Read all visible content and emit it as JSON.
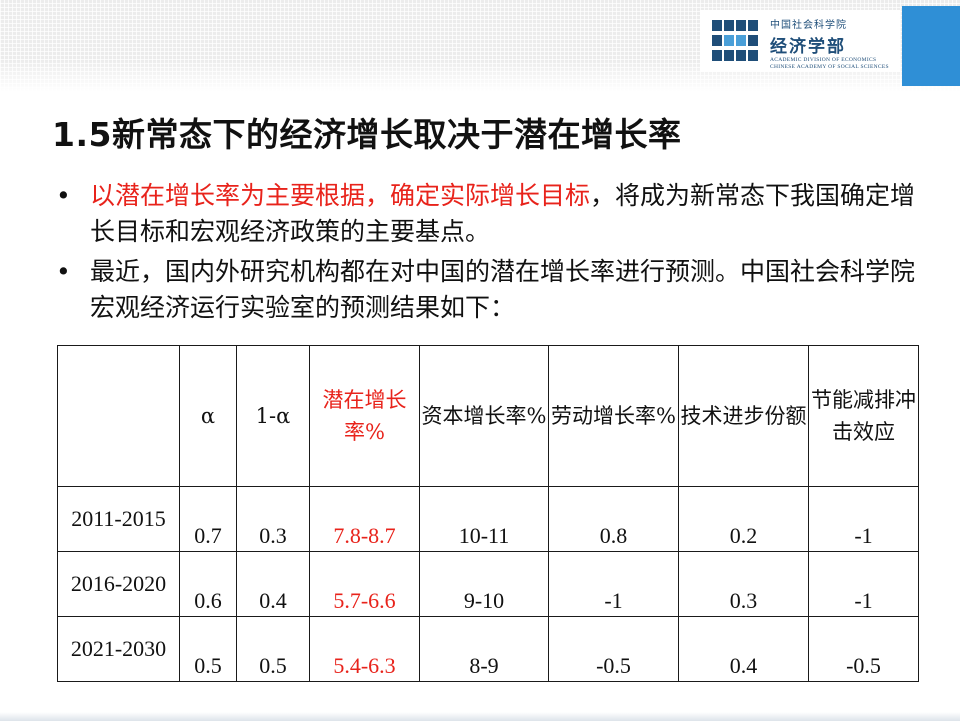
{
  "header": {
    "logo": {
      "cn_line1": "中国社会科学院",
      "cn_line2": "经济学部",
      "en_line1": "ACADEMIC DIVISION OF ECONOMICS",
      "en_line2": "CHINESE ACADEMY OF SOCIAL SCIENCES"
    },
    "accent_color": "#2f8fd6",
    "logo_color": "#1f4e79"
  },
  "slide": {
    "title": "1.5新常态下的经济增长取决于潜在增长率",
    "bullets": [
      {
        "marker": "•",
        "highlight": "以潜在增长率为主要根据，确定实际增长目标",
        "rest": "，将成为新常态下我国确定增长目标和宏观经济政策的主要基点。"
      },
      {
        "marker": "•",
        "highlight": "",
        "rest": "最近，国内外研究机构都在对中国的潜在增长率进行预测。中国社会科学院宏观经济运行实验室的预测结果如下："
      }
    ],
    "highlight_color": "#e8231b"
  },
  "table": {
    "headers": [
      "",
      "α",
      "1-α",
      "潜在增长率%",
      "资本增长率%",
      "劳动增长率%",
      "技术进步份额",
      "节能减排冲击效应"
    ],
    "rows": [
      [
        "2011-2015",
        "0.7",
        "0.3",
        "7.8-8.7",
        "10-11",
        "0.8",
        "0.2",
        "-1"
      ],
      [
        "2016-2020",
        "0.6",
        "0.4",
        "5.7-6.6",
        "9-10",
        "-1",
        "0.3",
        "-1"
      ],
      [
        "2021-2030",
        "0.5",
        "0.5",
        "5.4-6.3",
        "8-9",
        "-0.5",
        "0.4",
        "-0.5"
      ]
    ]
  }
}
